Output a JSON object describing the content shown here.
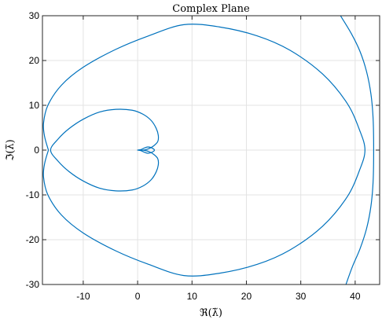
{
  "chart_data": {
    "type": "line",
    "title": "Complex Plane",
    "xlabel": "ℜ(λ̃)",
    "ylabel": "ℑ(λ̃)",
    "xlim": [
      -17.5,
      44.5
    ],
    "ylim": [
      -30,
      30
    ],
    "xticks": [
      -10,
      0,
      10,
      20,
      30,
      40
    ],
    "yticks": [
      -30,
      -20,
      -10,
      0,
      10,
      20,
      30
    ],
    "x_tick_labels": [
      "-10",
      "0",
      "10",
      "20",
      "30",
      "40"
    ],
    "y_tick_labels": [
      "-30",
      "-20",
      "-10",
      "0",
      "10",
      "20",
      "30"
    ],
    "grid": true,
    "series": [
      {
        "color": "#0072bd",
        "points": [
          [
            0,
            0
          ],
          [
            0.6,
            0.12
          ],
          [
            1.2,
            0.45
          ],
          [
            1.9,
            0.7
          ],
          [
            2.6,
            0.5
          ],
          [
            3.1,
            0
          ],
          [
            2.6,
            -0.5
          ],
          [
            1.9,
            -0.7
          ],
          [
            1.2,
            -0.45
          ],
          [
            0.6,
            -0.12
          ],
          [
            0,
            0
          ],
          [
            1.0,
            0
          ],
          [
            2.0,
            0.3
          ],
          [
            2.9,
            0.9
          ],
          [
            3.7,
            1.9
          ],
          [
            3.8,
            3.3
          ],
          [
            3.4,
            4.9
          ],
          [
            2.5,
            6.6
          ],
          [
            1.0,
            8.0
          ],
          [
            -1.0,
            8.9
          ],
          [
            -4.0,
            9.1
          ],
          [
            -7.0,
            8.5
          ],
          [
            -10.0,
            6.9
          ],
          [
            -12.6,
            4.8
          ],
          [
            -14.6,
            2.5
          ],
          [
            -16.0,
            0
          ],
          [
            -14.6,
            -2.5
          ],
          [
            -12.6,
            -4.8
          ],
          [
            -10.0,
            -6.9
          ],
          [
            -7.0,
            -8.5
          ],
          [
            -4.0,
            -9.1
          ],
          [
            -1.0,
            -8.9
          ],
          [
            1.0,
            -8.0
          ],
          [
            2.5,
            -6.6
          ],
          [
            3.4,
            -4.9
          ],
          [
            3.8,
            -3.3
          ],
          [
            3.7,
            -1.9
          ],
          [
            2.9,
            -0.9
          ],
          [
            2.0,
            -0.3
          ],
          [
            1.0,
            0
          ]
        ]
      },
      {
        "color": "#0072bd",
        "points": [
          [
            -16.4,
            0
          ],
          [
            -17.1,
            3.0
          ],
          [
            -17.3,
            6.0
          ],
          [
            -16.5,
            10.0
          ],
          [
            -14.0,
            14.5
          ],
          [
            -10.0,
            18.5
          ],
          [
            -4.0,
            22.5
          ],
          [
            2.0,
            25.5
          ],
          [
            8.5,
            28.0
          ],
          [
            15.0,
            27.5
          ],
          [
            22.0,
            25.5
          ],
          [
            28.0,
            22.3
          ],
          [
            34.0,
            17.0
          ],
          [
            38.5,
            10.5
          ],
          [
            40.8,
            4.5
          ],
          [
            41.8,
            0
          ],
          [
            40.8,
            -4.5
          ],
          [
            38.5,
            -10.5
          ],
          [
            34.0,
            -17.0
          ],
          [
            28.0,
            -22.3
          ],
          [
            22.0,
            -25.5
          ],
          [
            15.0,
            -27.5
          ],
          [
            8.5,
            -28.0
          ],
          [
            2.0,
            -25.5
          ],
          [
            -4.0,
            -22.5
          ],
          [
            -10.0,
            -18.5
          ],
          [
            -14.0,
            -14.5
          ],
          [
            -16.5,
            -10.0
          ],
          [
            -17.3,
            -6.0
          ],
          [
            -17.1,
            -3.0
          ],
          [
            -16.4,
            0
          ]
        ]
      },
      {
        "color": "#0072bd",
        "points": [
          [
            37.3,
            30
          ],
          [
            39.3,
            26
          ],
          [
            40.9,
            22
          ],
          [
            42.1,
            17.5
          ],
          [
            42.9,
            12.5
          ],
          [
            43.3,
            7.0
          ],
          [
            43.4,
            0
          ],
          [
            43.3,
            -7.0
          ],
          [
            42.9,
            -12.5
          ],
          [
            42.1,
            -17.5
          ],
          [
            40.9,
            -22
          ],
          [
            39.5,
            -26
          ],
          [
            38.3,
            -30
          ]
        ]
      }
    ]
  }
}
